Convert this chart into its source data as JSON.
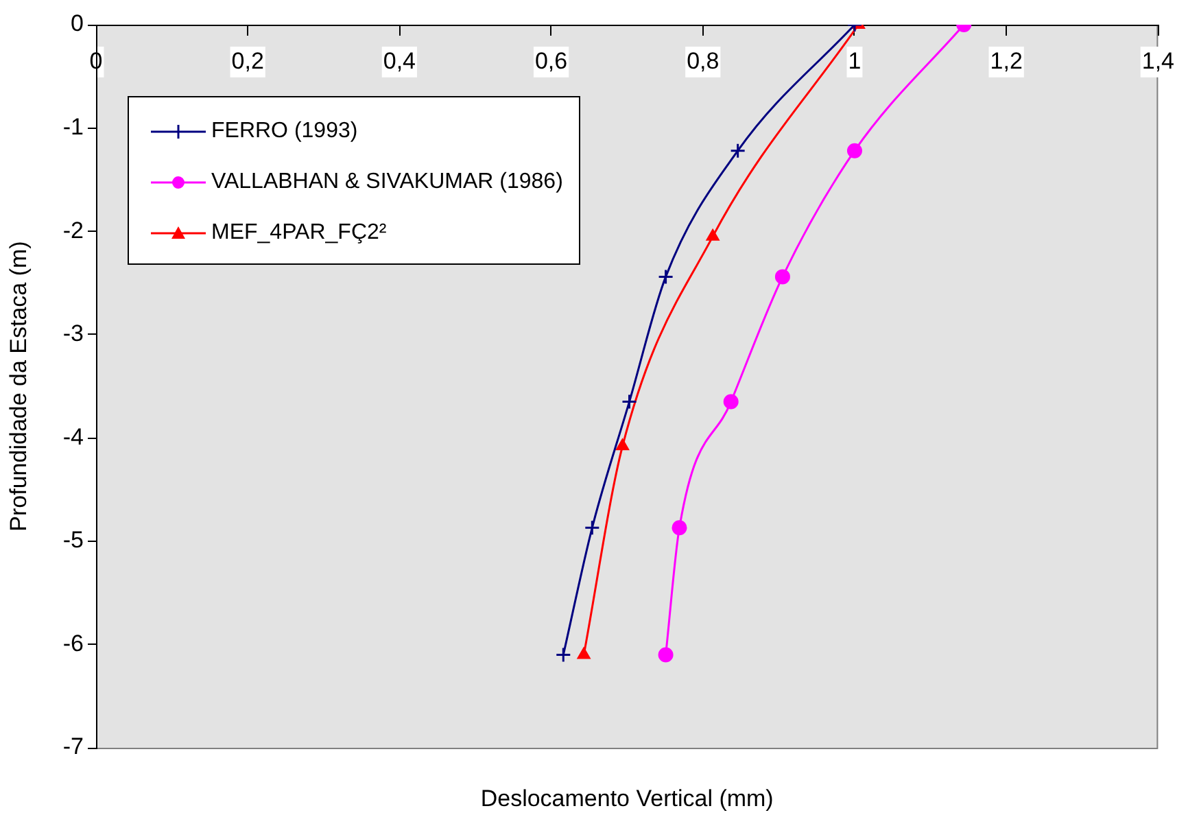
{
  "chart_data": {
    "type": "line",
    "xlabel": "Deslocamento Vertical (mm)",
    "ylabel": "Profundidade da Estaca (m)",
    "xlim": [
      0,
      1.4
    ],
    "xticks": [
      0,
      {
        "value": 0.2,
        "label": "0,2"
      },
      {
        "value": 0.4,
        "label": "0,4"
      },
      {
        "value": 0.6,
        "label": "0,6"
      },
      {
        "value": 0.8,
        "label": "0,8"
      },
      1,
      {
        "value": 1.2,
        "label": "1,2"
      },
      {
        "value": 1.4,
        "label": "1,4"
      }
    ],
    "ylim": [
      -7,
      0
    ],
    "yticks": [
      -7,
      -6,
      -5,
      -4,
      -3,
      -2,
      -1,
      0
    ],
    "grid": false,
    "legend": "top left",
    "series": [
      {
        "name": "FERRO (1993)",
        "color": "#000080",
        "marker": "cross",
        "x": [
          1,
          0.846,
          0.751,
          0.703,
          0.654,
          0.616
        ],
        "values": [
          0,
          -1.22,
          -2.44,
          -3.65,
          -4.87,
          -6.1
        ]
      },
      {
        "name": "VALLABHAN & SIVAKUMAR (1986)",
        "color": "#ff00ff",
        "marker": "circle",
        "x": [
          1.144,
          1,
          0.905,
          0.837,
          0.769,
          0.751
        ],
        "values": [
          0,
          -1.22,
          -2.44,
          -3.65,
          -4.87,
          -6.1
        ]
      },
      {
        "name": "MEF_4PAR_FÇ2²",
        "color": "#ff0000",
        "marker": "triangle",
        "x": [
          1.005,
          0.813,
          0.694,
          0.643
        ],
        "values": [
          0,
          -2.05,
          -4.08,
          -6.1
        ]
      }
    ]
  }
}
